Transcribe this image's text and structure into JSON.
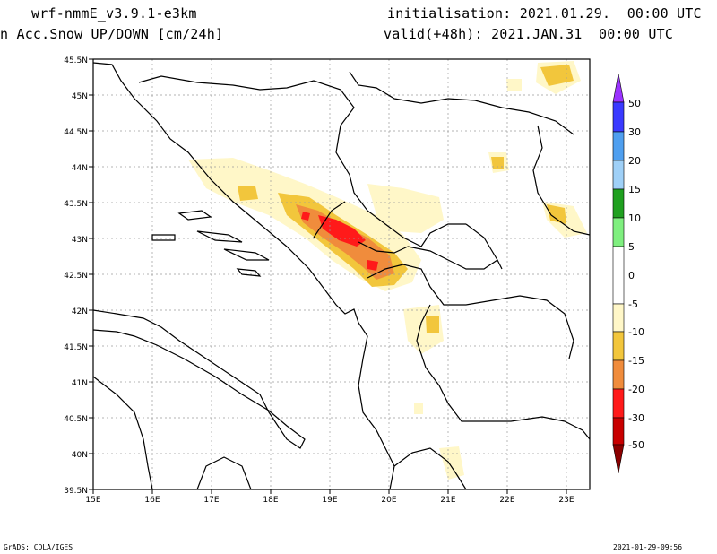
{
  "header": {
    "model": "wrf-nmmE_v3.9.1-e3km",
    "field": "n Acc.Snow UP/DOWN [cm/24h]",
    "init": "initialisation: 2021.01.29.  00:00 UTC",
    "valid": "valid(+48h): 2021.JAN.31  00:00 UTC"
  },
  "axes": {
    "lat_labels": [
      "45.5N",
      "45N",
      "44.5N",
      "44N",
      "43.5N",
      "43N",
      "42.5N",
      "42N",
      "41.5N",
      "41N",
      "40.5N",
      "40N",
      "39.5N"
    ],
    "lon_labels": [
      "15E",
      "16E",
      "17E",
      "18E",
      "19E",
      "20E",
      "21E",
      "22E",
      "23E"
    ]
  },
  "colorbar": {
    "labels": [
      "50",
      "30",
      "20",
      "15",
      "10",
      "5",
      "0",
      "-5",
      "-10",
      "-15",
      "-20",
      "-30",
      "-50"
    ],
    "colors": {
      "top_arrow": "#9b33ff",
      "c50": "#3a3aff",
      "c30": "#4f9fef",
      "c20": "#9fd0f7",
      "c15": "#1fa01f",
      "c10": "#7fef7f",
      "c0": "#ffffff",
      "m5": "#fff7c8",
      "m10": "#f2c63c",
      "m15": "#f08c3c",
      "m20": "#ff1a1a",
      "m30": "#c80000",
      "bottom_arrow": "#8b0000"
    }
  },
  "footer": {
    "left": "GrADS: COLA/IGES",
    "right": "2021-01-29-09:56"
  }
}
